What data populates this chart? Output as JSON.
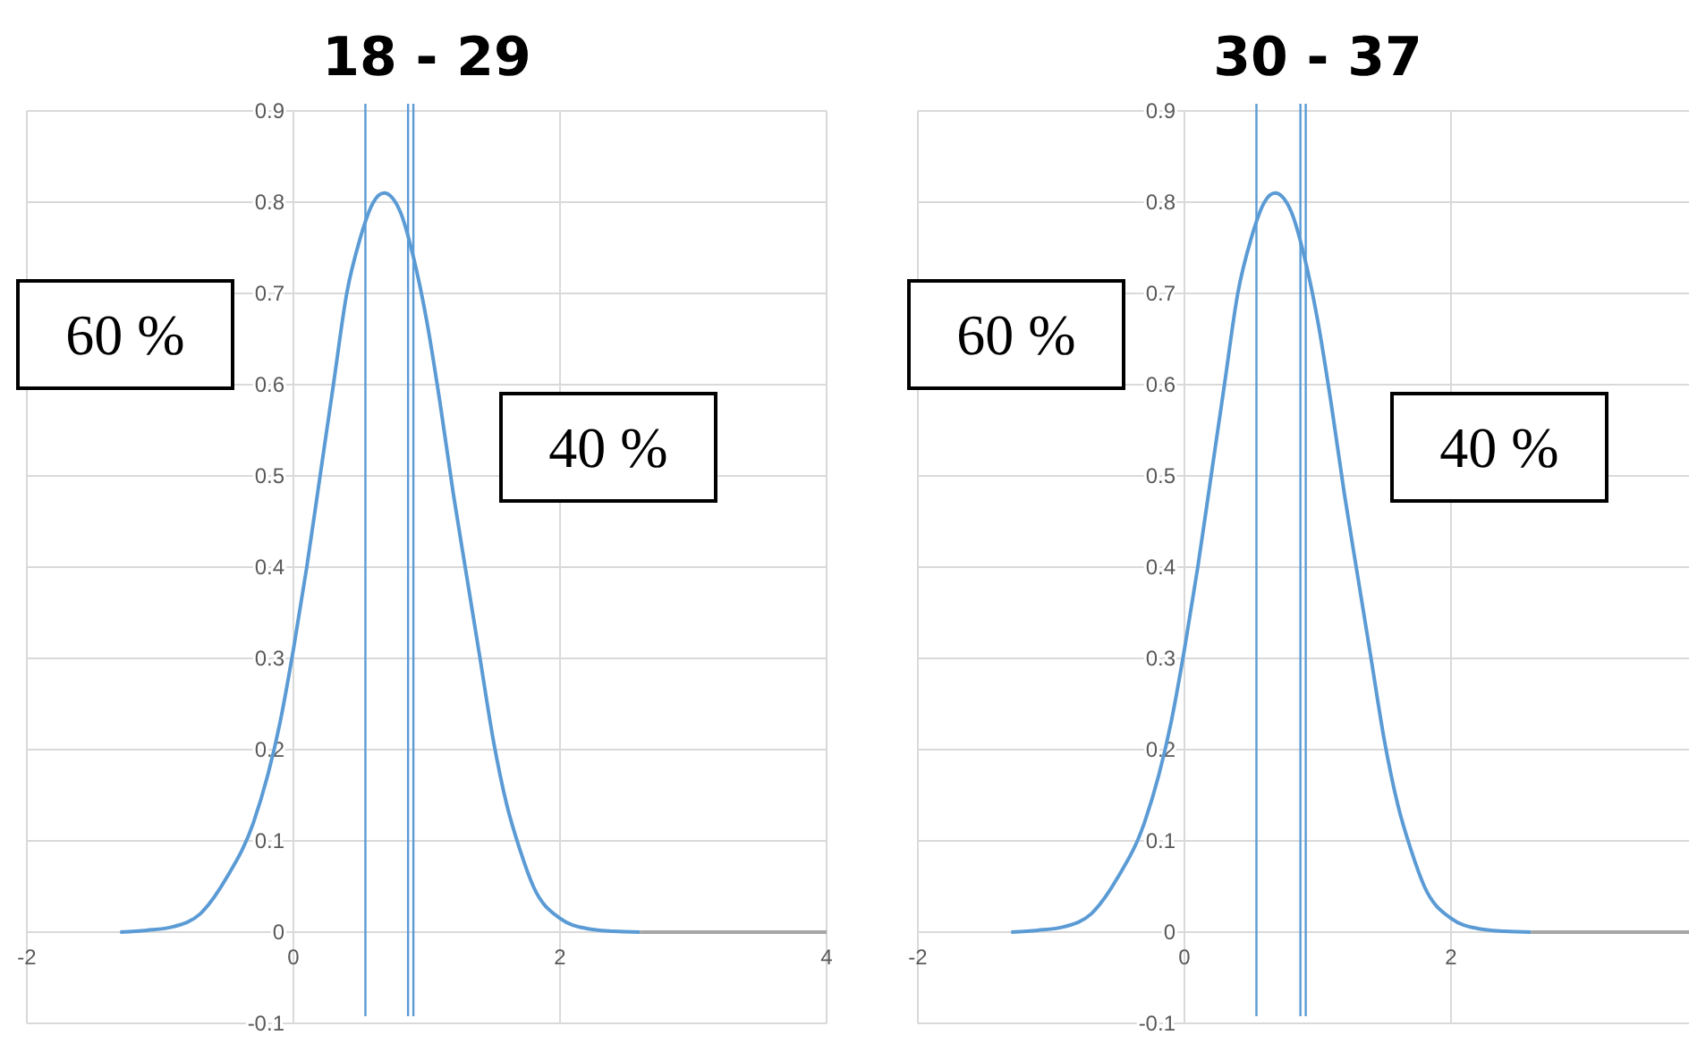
{
  "chart_data": [
    {
      "type": "line",
      "title": "18 - 29",
      "xlim": [
        -2,
        4
      ],
      "ylim": [
        -0.1,
        0.9
      ],
      "xticks": [
        -2,
        0,
        2,
        4
      ],
      "yticks": [
        -0.1,
        0,
        0.1,
        0.2,
        0.3,
        0.4,
        0.5,
        0.6,
        0.7,
        0.8,
        0.9
      ],
      "grid": true,
      "marker": "none",
      "series": [
        {
          "color": "#5b9bd5",
          "x": [
            -1.3,
            -1.1,
            -0.9,
            -0.7,
            -0.5,
            -0.3,
            -0.1,
            0,
            0.1,
            0.2,
            0.3,
            0.4,
            0.5,
            0.6,
            0.68,
            0.8,
            0.9,
            1.0,
            1.1,
            1.2,
            1.3,
            1.4,
            1.5,
            1.6,
            1.7,
            1.8,
            2.0,
            2.2,
            2.4,
            2.6
          ],
          "values": [
            0,
            0.002,
            0.006,
            0.02,
            0.06,
            0.12,
            0.23,
            0.31,
            0.4,
            0.5,
            0.6,
            0.7,
            0.76,
            0.8,
            0.81,
            0.79,
            0.74,
            0.67,
            0.58,
            0.48,
            0.39,
            0.3,
            0.21,
            0.14,
            0.09,
            0.05,
            0.015,
            0.004,
            0.001,
            0
          ]
        },
        {
          "color": "#a6a6a6",
          "x": [
            2.6,
            4
          ],
          "values": [
            0,
            0
          ]
        }
      ],
      "ref_lines": [
        {
          "axis": "x",
          "value": 0.54,
          "color": "#5b9bd5"
        },
        {
          "axis": "x",
          "value": 0.86,
          "color": "#5b9bd5"
        },
        {
          "axis": "x",
          "value": 0.9,
          "color": "#5b9bd5"
        }
      ],
      "annotations": [
        "60 %",
        "40 %"
      ]
    },
    {
      "type": "line",
      "title": "30 - 37",
      "xlim": [
        -2,
        3.8
      ],
      "ylim": [
        -0.1,
        0.9
      ],
      "xticks": [
        -2,
        0,
        2
      ],
      "yticks": [
        -0.1,
        0,
        0.1,
        0.2,
        0.3,
        0.4,
        0.5,
        0.6,
        0.7,
        0.8,
        0.9
      ],
      "grid": true,
      "marker": "none",
      "series": [
        {
          "color": "#5b9bd5",
          "x": [
            -1.3,
            -1.1,
            -0.9,
            -0.7,
            -0.5,
            -0.3,
            -0.1,
            0,
            0.1,
            0.2,
            0.3,
            0.4,
            0.5,
            0.6,
            0.68,
            0.8,
            0.9,
            1.0,
            1.1,
            1.2,
            1.3,
            1.4,
            1.5,
            1.6,
            1.7,
            1.8,
            2.0,
            2.2,
            2.4,
            2.6
          ],
          "values": [
            0,
            0.002,
            0.006,
            0.02,
            0.06,
            0.12,
            0.23,
            0.31,
            0.4,
            0.5,
            0.6,
            0.7,
            0.76,
            0.8,
            0.81,
            0.79,
            0.74,
            0.67,
            0.58,
            0.48,
            0.39,
            0.3,
            0.21,
            0.14,
            0.09,
            0.05,
            0.015,
            0.004,
            0.001,
            0
          ]
        },
        {
          "color": "#a6a6a6",
          "x": [
            2.6,
            3.8
          ],
          "values": [
            0,
            0
          ]
        }
      ],
      "ref_lines": [
        {
          "axis": "x",
          "value": 0.54,
          "color": "#5b9bd5"
        },
        {
          "axis": "x",
          "value": 0.87,
          "color": "#5b9bd5"
        },
        {
          "axis": "x",
          "value": 0.91,
          "color": "#5b9bd5"
        }
      ],
      "annotations": [
        "60 %",
        "40 %"
      ]
    }
  ]
}
